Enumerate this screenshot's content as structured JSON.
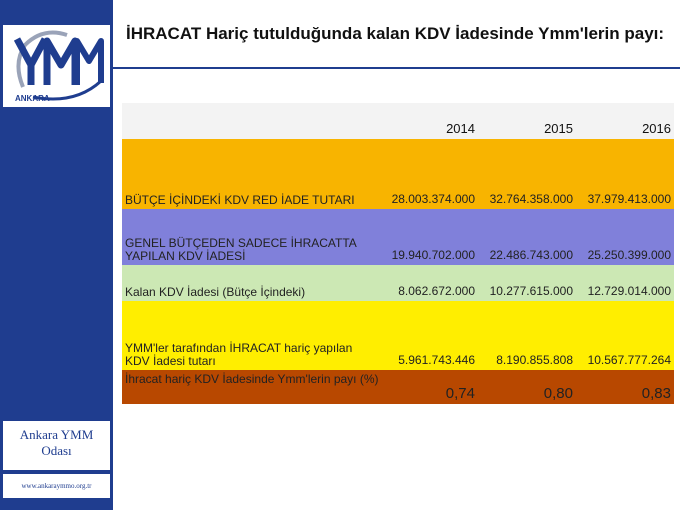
{
  "sidebar": {
    "logo": {
      "name": "ymm-logo",
      "text": "ANKARA"
    },
    "org_name_line1": "Ankara YMM",
    "org_name_line2": "Odası",
    "website": "www.ankaraymmo.org.tr"
  },
  "header": {
    "title": "İHRACAT Hariç tutulduğunda kalan KDV İadesinde Ymm'lerin payı:"
  },
  "table": {
    "years": [
      "2014",
      "2015",
      "2016"
    ],
    "rows": [
      {
        "label": "BÜTÇE İÇİNDEKİ KDV RED İADE TUTARI",
        "values": [
          "28.003.374.000",
          "32.764.358.000",
          "37.979.413.000"
        ]
      },
      {
        "label": "GENEL BÜTÇEDEN SADECE İHRACATTA YAPILAN KDV İADESİ",
        "values": [
          "19.940.702.000",
          "22.486.743.000",
          "25.250.399.000"
        ]
      },
      {
        "label": "Kalan KDV İadesi (Bütçe İçindeki)",
        "values": [
          "8.062.672.000",
          "10.277.615.000",
          "12.729.014.000"
        ]
      },
      {
        "label": "YMM'ler tarafından İHRACAT hariç yapılan KDV İadesi tutarı",
        "values": [
          "5.961.743.446",
          "8.190.855.808",
          "10.567.777.264"
        ]
      },
      {
        "label": "İhracat hariç KDV İadesinde Ymm'lerin payı (%)",
        "values": [
          "0,74",
          "0,80",
          "0,83"
        ]
      }
    ],
    "row_colors": [
      "#f8b400",
      "#8080da",
      "#cce8b4",
      "#ffee00",
      "#b84800"
    ]
  }
}
